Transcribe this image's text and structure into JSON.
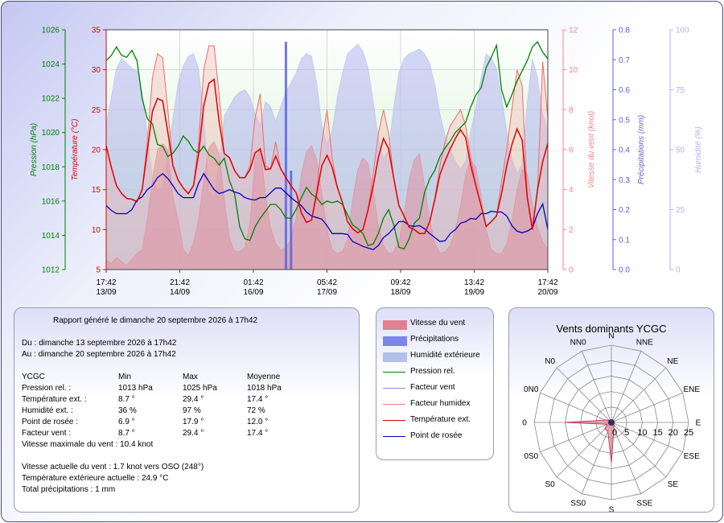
{
  "chart_data": [
    {
      "type": "line",
      "x_ticks": [
        {
          "time": "17:42",
          "date": "13/09"
        },
        {
          "time": "21:42",
          "date": "14/09"
        },
        {
          "time": "01:42",
          "date": "16/09"
        },
        {
          "time": "05:42",
          "date": "17/09"
        },
        {
          "time": "09:42",
          "date": "18/09"
        },
        {
          "time": "13:42",
          "date": "19/09"
        },
        {
          "time": "17:42",
          "date": "20/09"
        }
      ],
      "axes": {
        "pressure": {
          "label": "Pression (hPa)",
          "range": [
            1012,
            1026
          ],
          "ticks": [
            "1012",
            "1014",
            "1016",
            "1018",
            "1020",
            "1022",
            "1024",
            "1026"
          ],
          "color": "#008000"
        },
        "temperature": {
          "label": "Température (°C)",
          "range": [
            5,
            35
          ],
          "ticks": [
            "5",
            "10",
            "15",
            "20",
            "25",
            "30",
            "35"
          ],
          "color": "#e00000"
        },
        "wind": {
          "label": "Vitesse du vent (knot)",
          "range": [
            0,
            12
          ],
          "ticks": [
            "0",
            "2",
            "4",
            "6",
            "8",
            "10",
            "12"
          ],
          "color": "#ff8080"
        },
        "precip": {
          "label": "Précipitations (mm)",
          "range": [
            0,
            0.8
          ],
          "ticks": [
            "0.0",
            "0.1",
            "0.2",
            "0.3",
            "0.4",
            "0.5",
            "0.6",
            "0.7",
            "0.8"
          ],
          "color": "#6060e0"
        },
        "humidity": {
          "label": "Humidité (%)",
          "range": [
            0,
            100
          ],
          "ticks": [
            "0",
            "25",
            "50",
            "75",
            "100"
          ],
          "color": "#b0b0f0"
        }
      },
      "series": [
        {
          "name": "Pression rel.",
          "axis": "pressure",
          "color": "#008000",
          "values": [
            1024.2,
            1024.5,
            1025,
            1024.5,
            1024.4,
            1024.8,
            1024.2,
            1022,
            1020.8,
            1020.5,
            1019.3,
            1019.2,
            1018.6,
            1018.8,
            1019.2,
            1019.8,
            1019.5,
            1019,
            1018.8,
            1019.2,
            1018.7,
            1018.5,
            1018.1,
            1018.5,
            1017.2,
            1016.4,
            1014.5,
            1013.8,
            1013.7,
            1014.5,
            1015,
            1015.4,
            1015.8,
            1015.8,
            1015.5,
            1015,
            1015,
            1015.5,
            1016.2,
            1016.8,
            1016.4,
            1016.2,
            1015.8,
            1016,
            1015.9,
            1016,
            1015.8,
            1015.2,
            1014.6,
            1014.4,
            1014.1,
            1013.4,
            1013.5,
            1014.1,
            1015,
            1015.5,
            1014.6,
            1013.3,
            1013.2,
            1013.8,
            1014.7,
            1015,
            1016.5,
            1017.3,
            1017.8,
            1018.6,
            1019.1,
            1019.5,
            1020,
            1020.3,
            1020.6,
            1021.5,
            1022.2,
            1022.6,
            1023.8,
            1024.4,
            1025.1,
            1022.5,
            1021.5,
            1022.2,
            1023,
            1023.6,
            1024.2,
            1025,
            1025.3,
            1024.7,
            1024.3
          ]
        },
        {
          "name": "Température ext.",
          "axis": "temperature",
          "color": "#e00000",
          "values": [
            20.5,
            17.8,
            15.5,
            14.5,
            13.9,
            13.8,
            13.5,
            15,
            19.8,
            24.8,
            26.4,
            26.1,
            22.2,
            18,
            16.2,
            15.2,
            14.5,
            15.5,
            19.5,
            25.5,
            28.3,
            28.8,
            23.5,
            19.5,
            19,
            17.4,
            16.5,
            16.5,
            17.5,
            19.6,
            20.1,
            17.5,
            17.6,
            19.2,
            17.6,
            16.5,
            15.5,
            14.6,
            12.1,
            10.9,
            11.2,
            14.5,
            18,
            19.3,
            17.8,
            15.3,
            13.4,
            11,
            10.1,
            9.6,
            10,
            12.5,
            15.5,
            19,
            21.4,
            20.1,
            16.4,
            13,
            11.7,
            10.3,
            10,
            9.5,
            9.5,
            11,
            13.8,
            16.9,
            18.6,
            20.1,
            21.4,
            22.5,
            21.5,
            18,
            15.5,
            13,
            10.4,
            11,
            11.7,
            14.5,
            18,
            20.6,
            22.6,
            21.2,
            14,
            10,
            15,
            18.5,
            20.8
          ]
        },
        {
          "name": "Point de rosée",
          "axis": "temperature",
          "color": "#0000c0",
          "values": [
            13,
            12.4,
            12,
            12,
            12,
            12.5,
            13.7,
            14.1,
            15,
            15.5,
            16.5,
            17,
            16.4,
            15.5,
            14.5,
            14,
            14,
            14,
            15.8,
            17,
            16,
            15,
            14.5,
            14.7,
            15,
            14.7,
            14.5,
            14,
            13.8,
            13.7,
            14,
            14,
            14.6,
            15.2,
            15.2,
            14.6,
            14,
            13.5,
            13,
            12.2,
            11.7,
            11.5,
            11.3,
            10.5,
            9.5,
            9.5,
            9.5,
            9.4,
            8.5,
            8.2,
            7.9,
            7.7,
            7.5,
            8,
            9,
            9.5,
            10.2,
            11,
            11,
            10.5,
            10.4,
            10.5,
            10.1,
            9.5,
            9,
            8.5,
            8.6,
            9.5,
            10,
            10.8,
            11,
            11.4,
            11.3,
            12,
            12,
            12.3,
            12.2,
            12.2,
            11.7,
            10.5,
            9.8,
            9.6,
            9.8,
            10.2,
            12,
            13.2,
            10
          ]
        },
        {
          "name": "Humidité extérieure",
          "axis": "humidity",
          "color": "#b4b4f0",
          "values": [
            60,
            72,
            84,
            88,
            86,
            84,
            83,
            74,
            56,
            38,
            33,
            34,
            48,
            63,
            78,
            85,
            89,
            90,
            84,
            63,
            33,
            30,
            44,
            64,
            68,
            72,
            74,
            75,
            72,
            65,
            60,
            70,
            68,
            62,
            68,
            74,
            78,
            82,
            88,
            90,
            89,
            78,
            60,
            52,
            58,
            72,
            82,
            90,
            92,
            94,
            91,
            84,
            70,
            55,
            46,
            50,
            68,
            82,
            88,
            90,
            91,
            92,
            90,
            86,
            77,
            65,
            56,
            50,
            45,
            42,
            45,
            58,
            68,
            80,
            90,
            88,
            84,
            72,
            58,
            46,
            40,
            44,
            70,
            88,
            80,
            65,
            58
          ]
        },
        {
          "name": "Vitesse du vent",
          "axis": "wind",
          "color": "#f08080",
          "values": [
            0.5,
            0.3,
            0.6,
            0.4,
            0.2,
            0.5,
            0.8,
            1,
            2.5,
            4.5,
            6,
            6.3,
            6,
            3.6,
            2.5,
            1,
            0.7,
            1.3,
            2.5,
            4.5,
            6.1,
            6.4,
            5.8,
            3.5,
            1.6,
            0.9,
            0.9,
            1.1,
            2.3,
            5.5,
            6.1,
            3.8,
            2.1,
            1.3,
            1,
            1.1,
            1.5,
            2.6,
            4.8,
            5.9,
            6.2,
            5.5,
            3.8,
            2,
            1,
            0.8,
            0.9,
            1.5,
            3.5,
            5,
            5.6,
            5.3,
            3.9,
            2.2,
            1.2,
            0.8,
            0.9,
            1.4,
            2.8,
            4.5,
            5.5,
            5.8,
            4.2,
            2.5,
            1.3,
            0.8,
            0.9,
            1.2,
            2,
            3.2,
            4.8,
            5.5,
            5.1,
            3.7,
            2,
            1,
            0.8,
            0.8,
            1.3,
            2.4,
            4,
            5,
            4.8,
            3.2,
            2.1,
            1.4,
            1
          ]
        },
        {
          "name": "Facteur humidex",
          "axis": "temperature",
          "color": "#f07070",
          "values": [
            20.5,
            17.8,
            15.5,
            14.5,
            13.9,
            13.8,
            13.5,
            15,
            21,
            29,
            32,
            31.5,
            25,
            18,
            16.2,
            15.2,
            14.5,
            15.5,
            21,
            30,
            33,
            33,
            27,
            19.5,
            19,
            17.4,
            16.5,
            16.5,
            18,
            24,
            27,
            18,
            17.6,
            21,
            17.6,
            16.5,
            15.5,
            14.6,
            12.1,
            10.9,
            11.2,
            15,
            21,
            25,
            19,
            15.3,
            13.4,
            11,
            10.1,
            9.6,
            10,
            12.5,
            17,
            22,
            25,
            22,
            16.4,
            13,
            11.7,
            10.3,
            10,
            9.5,
            9.5,
            11,
            14,
            18,
            21,
            23,
            24,
            25,
            23,
            19,
            15.5,
            13,
            10.4,
            11,
            11.7,
            16,
            20,
            25,
            30,
            28,
            14,
            10,
            15,
            31,
            24
          ]
        },
        {
          "name": "Précipitations",
          "axis": "precip",
          "color": "#5050e0",
          "values": [
            0,
            0,
            0,
            0,
            0,
            0,
            0,
            0,
            0,
            0,
            0,
            0,
            0,
            0,
            0,
            0,
            0,
            0,
            0,
            0,
            0,
            0,
            0,
            0,
            0,
            0,
            0,
            0,
            0,
            0,
            0,
            0,
            0,
            0,
            0,
            0.76,
            0.33,
            0,
            0,
            0,
            0,
            0,
            0,
            0,
            0,
            0,
            0,
            0,
            0,
            0,
            0,
            0,
            0,
            0,
            0,
            0,
            0,
            0,
            0,
            0,
            0,
            0,
            0,
            0,
            0,
            0,
            0,
            0,
            0,
            0,
            0,
            0,
            0,
            0,
            0,
            0,
            0,
            0,
            0,
            0,
            0,
            0,
            0,
            0,
            0,
            0,
            0
          ]
        },
        {
          "name": "Facteur vent",
          "axis": "temperature",
          "color": "#8888ff",
          "values": []
        }
      ]
    },
    {
      "type": "radar",
      "title": "Vents dominants YCGC",
      "directions": [
        "N",
        "NNE",
        "NE",
        "ENE",
        "E",
        "ESE",
        "SE",
        "SSE",
        "S",
        "SS0",
        "S0",
        "0S0",
        "0",
        "0N0",
        "N0",
        "NN0"
      ],
      "scale_labels": [
        "0",
        "5",
        "10",
        "15",
        "20",
        "25"
      ],
      "scale_max": 25,
      "values": [
        0.8,
        0.6,
        0.4,
        0.6,
        1,
        0.8,
        1.2,
        2.2,
        13,
        3,
        3,
        1.5,
        15,
        2,
        1,
        0.8
      ],
      "color": "#e07080"
    }
  ],
  "legend": [
    {
      "label": "Vitesse du vent",
      "kind": "area",
      "color": "#e07080"
    },
    {
      "label": "Précipitations",
      "kind": "area",
      "color": "#6a72e8"
    },
    {
      "label": "Humidité extérieure",
      "kind": "area",
      "color": "#a8b8e8"
    },
    {
      "label": "Pression rel.",
      "kind": "line",
      "color": "#008000"
    },
    {
      "label": "Facteur vent",
      "kind": "line",
      "color": "#8a8ae8"
    },
    {
      "label": "Facteur humidex",
      "kind": "line",
      "color": "#f08080"
    },
    {
      "label": "Température ext.",
      "kind": "line",
      "color": "#e00000"
    },
    {
      "label": "Point de rosée",
      "kind": "line",
      "color": "#0000c0"
    }
  ],
  "report": {
    "header": "Rapport généré le dimanche 20 septembre 2026 à 17h42",
    "from": "Du : dimanche 13 septembre 2026 à 17h42",
    "to": "Au : dimanche 20 septembre 2026 à 17h42",
    "table_header": [
      "YCGC",
      "Min",
      "Max",
      "Moyenne"
    ],
    "rows": [
      [
        "Pression rel. :",
        "1013 hPa",
        "1025 hPa",
        "1018 hPa"
      ],
      [
        "Température ext. :",
        "8.7 °",
        "29.4 °",
        "17.4 °"
      ],
      [
        "Humidité ext. :",
        "36 %",
        "97 %",
        "72 %"
      ],
      [
        "Point de rosée :",
        "6.9 °",
        "17.9 °",
        "12.0 °"
      ],
      [
        "Facteur vent :",
        "8.7 °",
        "29.4 °",
        "17.4 °"
      ]
    ],
    "max_wind": "Vitesse maximale du vent : 10.4 knot",
    "current_wind": "Vitesse actuelle du vent : 1.7 knot vers  OSO (248°)",
    "current_temp": "Température extérieure actuelle :  24.9 °C",
    "total_precip": "Total précipitations :  1 mm"
  }
}
